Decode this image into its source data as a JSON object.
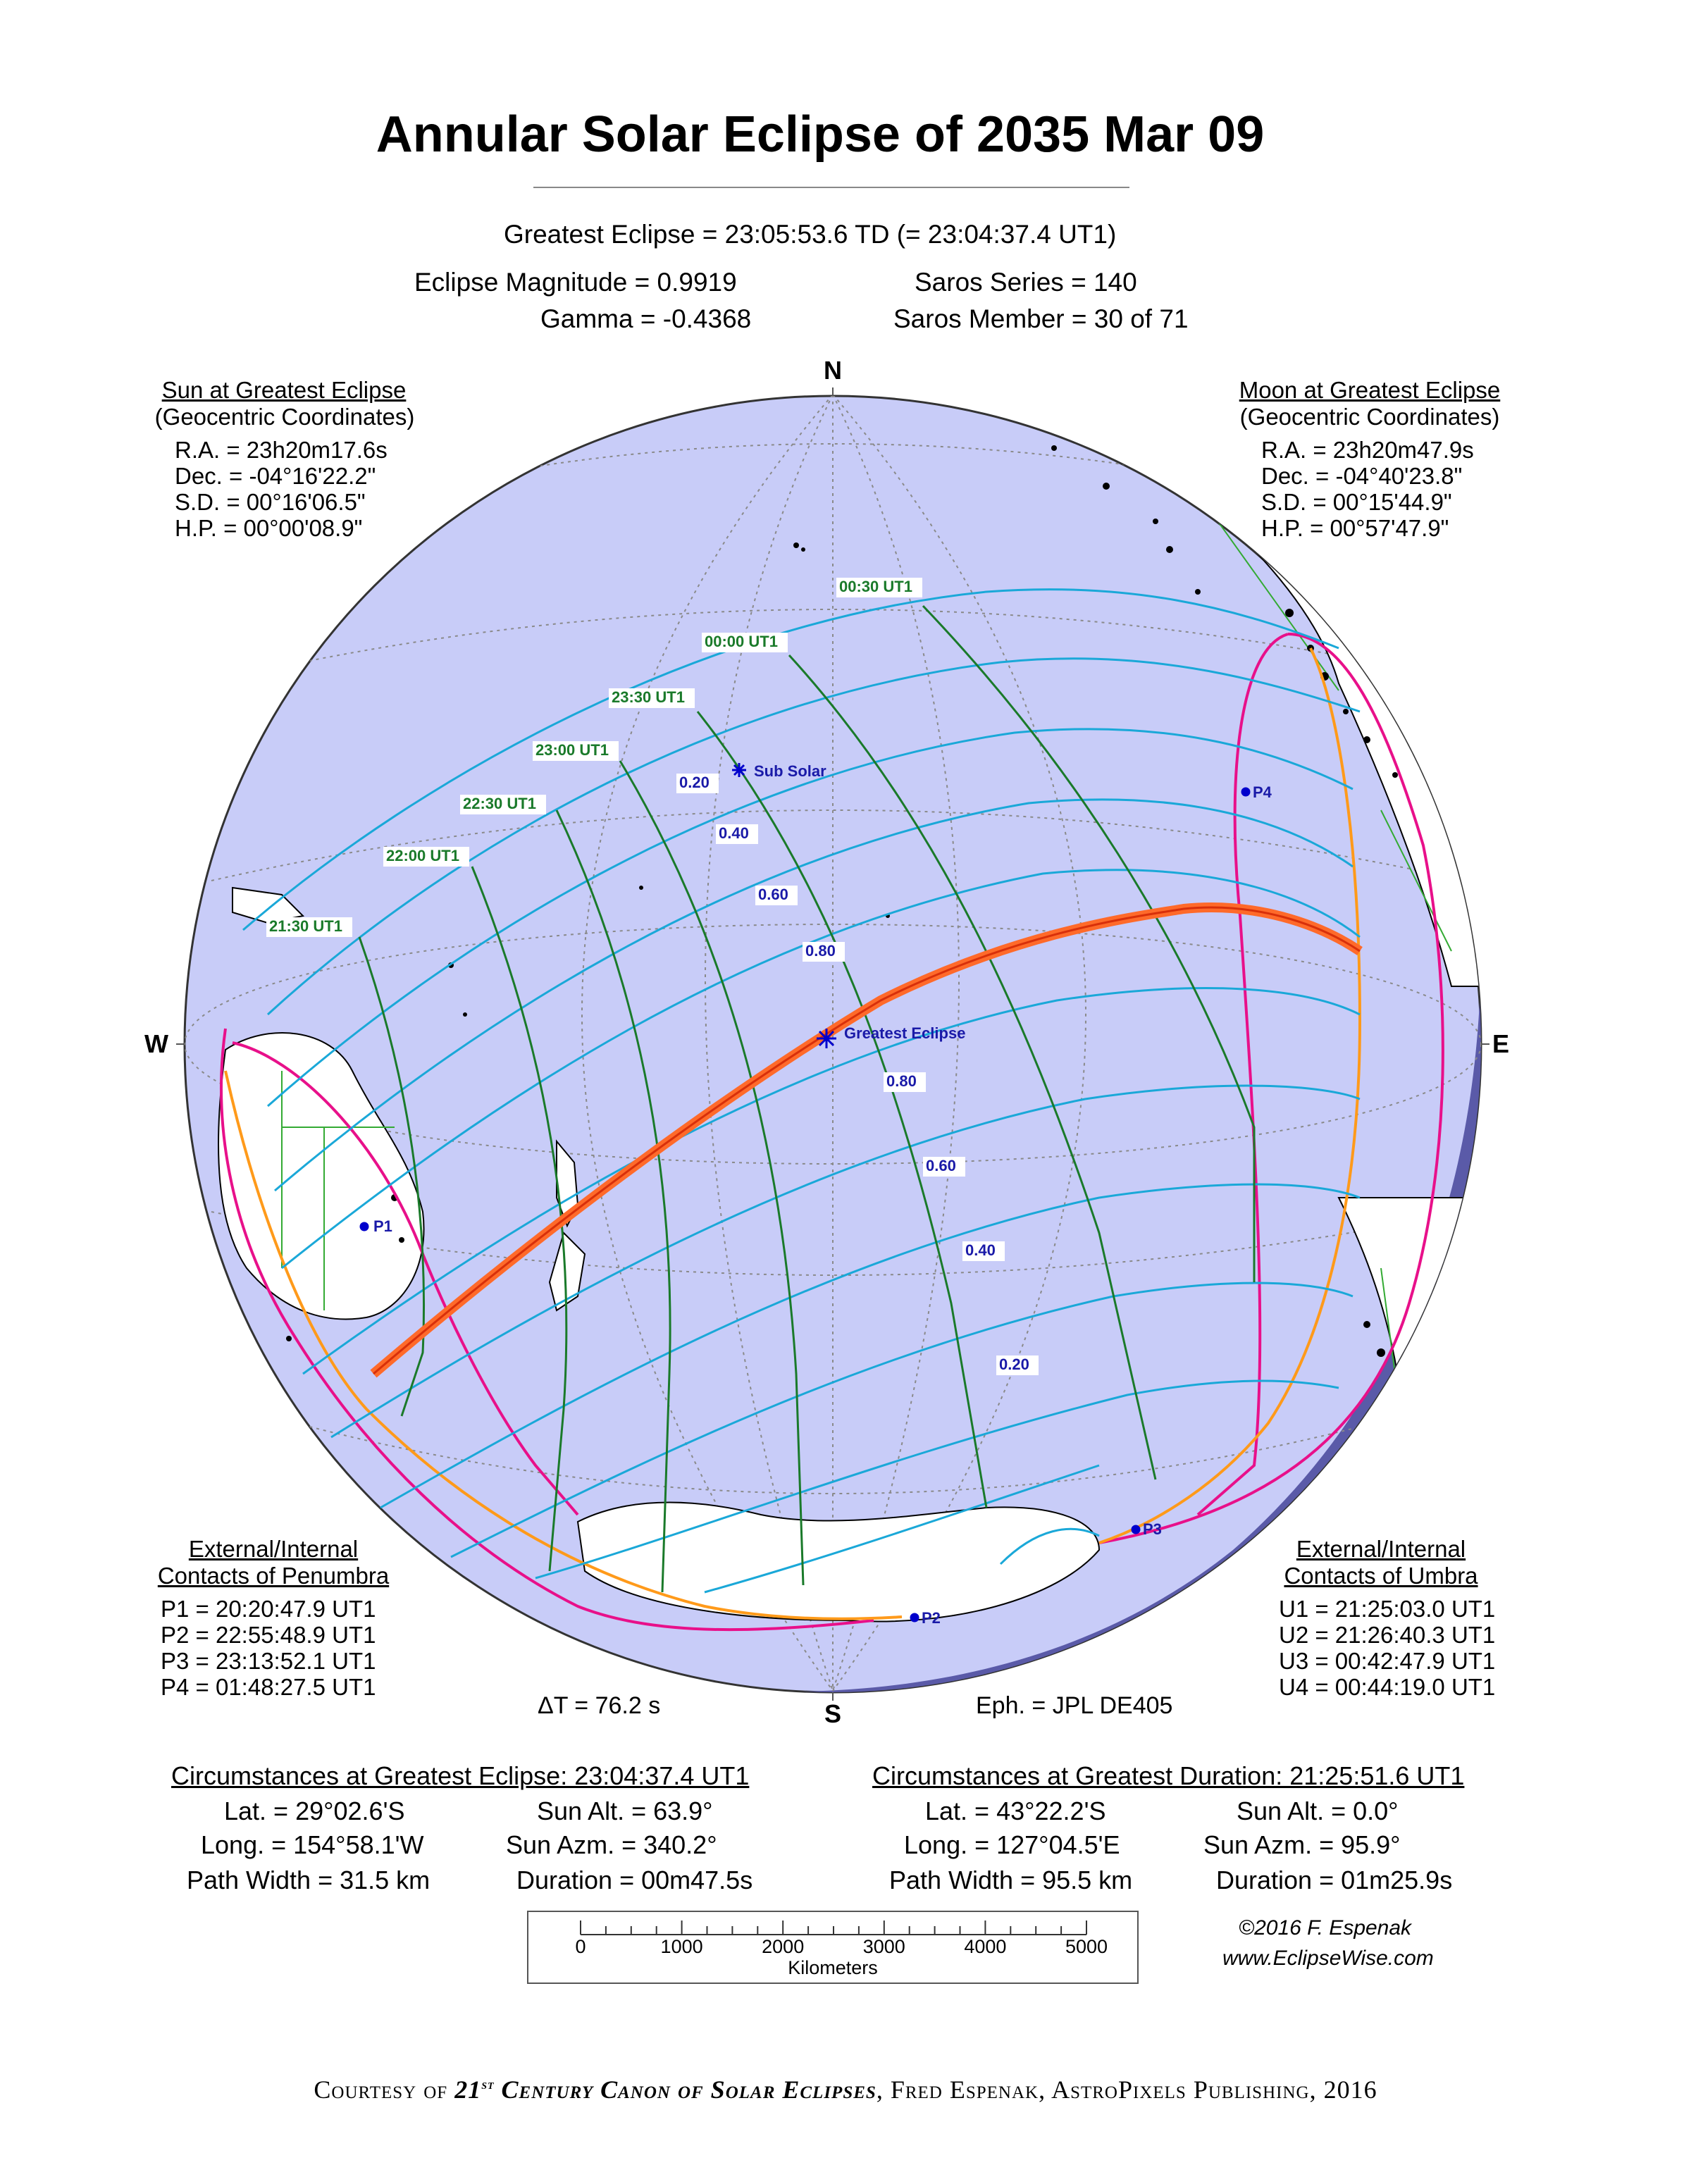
{
  "title": "Annular Solar Eclipse of  2035 Mar 09",
  "header": {
    "greatest_eclipse": "Greatest Eclipse =  23:05:53.6 TD   (= 23:04:37.4 UT1)",
    "magnitude": "Eclipse Magnitude =  0.9919",
    "gamma": "Gamma = -0.4368",
    "saros_series": "Saros Series =  140",
    "saros_member": "Saros Member =   30 of 71"
  },
  "sun": {
    "title": "Sun at Greatest Eclipse",
    "subtitle": "(Geocentric Coordinates)",
    "lines": [
      "R.A. = 23h20m17.6s",
      "Dec. = -04°16'22.2\"",
      "S.D. =  00°16'06.5\"",
      "H.P. =  00°00'08.9\""
    ]
  },
  "moon": {
    "title": "Moon at Greatest Eclipse",
    "subtitle": "(Geocentric Coordinates)",
    "lines": [
      "R.A. = 23h20m47.9s",
      "Dec. = -04°40'23.8\"",
      "S.D. =  00°15'44.9\"",
      "H.P. =  00°57'47.9\""
    ]
  },
  "penumbra": {
    "title1": "External/Internal",
    "title2": "Contacts of Penumbra",
    "lines": [
      "P1 = 20:20:47.9 UT1",
      "P2 = 22:55:48.9 UT1",
      "P3 = 23:13:52.1 UT1",
      "P4 = 01:48:27.5 UT1"
    ]
  },
  "umbra": {
    "title1": "External/Internal",
    "title2": "Contacts of Umbra",
    "lines": [
      "U1 = 21:25:03.0 UT1",
      "U2 = 21:26:40.3 UT1",
      "U3 = 00:42:47.9 UT1",
      "U4 = 00:44:19.0 UT1"
    ]
  },
  "map": {
    "cardinals": {
      "n": "N",
      "s": "S",
      "e": "E",
      "w": "W"
    },
    "time_labels": [
      "21:30 UT1",
      "22:00 UT1",
      "22:30 UT1",
      "23:00 UT1",
      "23:30 UT1",
      "00:00 UT1",
      "00:30 UT1"
    ],
    "mag_labels_north": [
      "0.20",
      "0.40",
      "0.60",
      "0.80"
    ],
    "mag_labels_south": [
      "0.80",
      "0.60",
      "0.40",
      "0.20"
    ],
    "sub_solar": "Sub Solar",
    "greatest_eclipse": "Greatest Eclipse",
    "contacts": [
      "P1",
      "P2",
      "P3",
      "P4"
    ],
    "colors": {
      "ocean": "#c8ccf8",
      "night": "#5a5aa8",
      "land": "#ffffff",
      "path": "#ff6a2a",
      "penumbra_limit": "#e8108a",
      "rise_set": "#ff9a1a",
      "magnitude_lines": "#1aa8d8",
      "time_lines": "#1a7a2a",
      "grid": "#888888"
    }
  },
  "delta_t": "ΔT =     76.2 s",
  "ephemeris": "Eph. = JPL DE405",
  "circ_greatest": {
    "title": "Circumstances at Greatest Eclipse:  23:04:37.4 UT1",
    "lat": "Lat. =  29°02.6'S",
    "long": "Long. = 154°58.1'W",
    "width": "Path Width =  31.5 km",
    "alt": "Sun Alt. =  63.9°",
    "azm": "Sun Azm. = 340.2°",
    "dur": "Duration =  00m47.5s"
  },
  "circ_duration": {
    "title": "Circumstances at Greatest Duration:  21:25:51.6 UT1",
    "lat": "Lat. =  43°22.2'S",
    "long": "Long. = 127°04.5'E",
    "width": "Path Width =  95.5 km",
    "alt": "Sun Alt. =    0.0°",
    "azm": "Sun Azm. =  95.9°",
    "dur": "Duration =  01m25.9s"
  },
  "scale": {
    "ticks": [
      "0",
      "1000",
      "2000",
      "3000",
      "4000",
      "5000"
    ],
    "label": "Kilometers"
  },
  "credit": {
    "copyright": "©2016  F. Espenak",
    "website": "www.EclipseWise.com"
  },
  "courtesy": {
    "a": "Courtesy of ",
    "b": "21",
    "b_sup": "st",
    "c": " Century Canon of Solar Eclipses",
    "d": ", Fred Espenak, AstroPixels Publishing, 2016"
  }
}
